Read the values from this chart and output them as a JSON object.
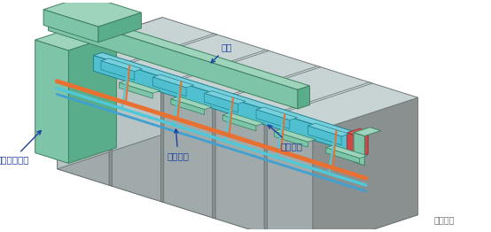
{
  "bg_color": "#ffffff",
  "gray_dark": "#8a9090",
  "gray_mid": "#a0aaaa",
  "gray_light": "#b8c4c4",
  "gray_lightest": "#c8d4d4",
  "green_dark": "#5aad8a",
  "green_mid": "#7dc4a8",
  "green_light": "#9ed4bc",
  "cyan_dark": "#3aa8b8",
  "cyan_mid": "#50c0d0",
  "cyan_light": "#78d0dc",
  "red_box": "#d04848",
  "orange_line": "#e87030",
  "blue_line": "#40a0d0",
  "cyan_line": "#50c8d8",
  "label_color": "#2040a0",
  "watermark": "暖通南社",
  "labels": {
    "fengGuan": "风管",
    "gongHuiShui": "供回水管",
    "fengJiPan": "风机盘管",
    "kongQi": "空气处理机组"
  }
}
